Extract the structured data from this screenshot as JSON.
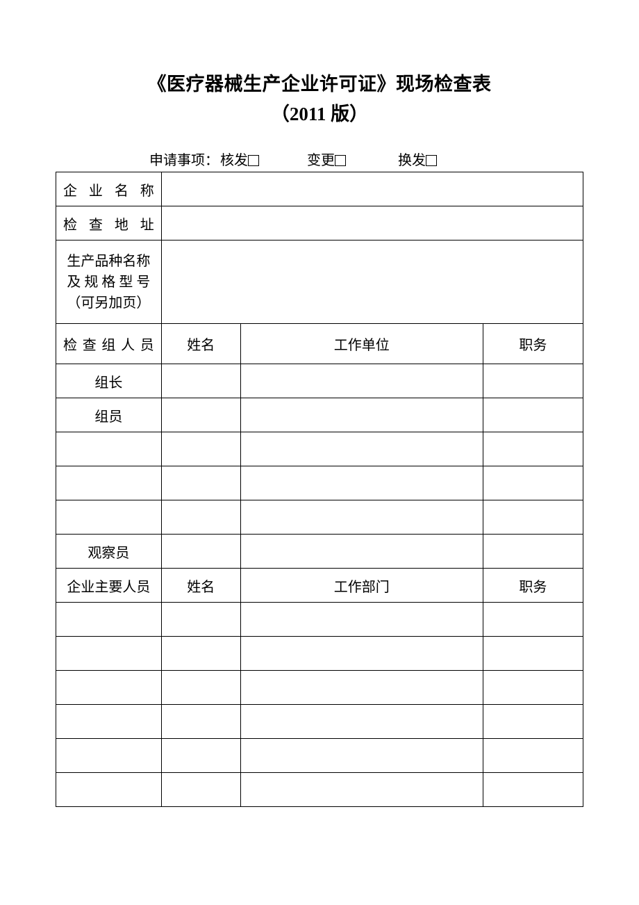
{
  "title": {
    "line1": "《医疗器械生产企业许可证》现场检查表",
    "line2": "（2011 版）"
  },
  "apply": {
    "prefix": "申请事项：",
    "opt1": "核发",
    "opt2": "变更",
    "opt3": "换发"
  },
  "labels": {
    "company_name": "企 业 名 称",
    "address": "检 查 地 址",
    "product_spec_l1": "生产品种名称",
    "product_spec_l2": "及 规 格 型 号",
    "product_spec_l3": "（可另加页）",
    "inspectors": "检 查 组 人 员",
    "name": "姓名",
    "workplace": "工作单位",
    "position": "职务",
    "leader": "组长",
    "member": "组员",
    "observer": "观察员",
    "company_staff": "企业主要人员",
    "department": "工作部门"
  }
}
